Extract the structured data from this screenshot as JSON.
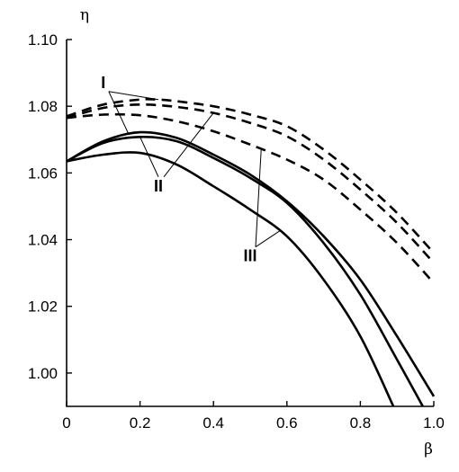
{
  "chart_data": {
    "type": "line",
    "title": "",
    "xlabel": "β",
    "ylabel": "η",
    "xlim": [
      0,
      1.0
    ],
    "ylim": [
      0.99,
      1.1
    ],
    "x_ticks": [
      0,
      0.2,
      0.4,
      0.6,
      0.8,
      1.0
    ],
    "x_tick_labels": [
      "0",
      "0.2",
      "0.4",
      "0.6",
      "0.8",
      "1.0"
    ],
    "y_ticks": [
      1.0,
      1.02,
      1.04,
      1.06,
      1.08,
      1.1
    ],
    "y_tick_labels": [
      "1.00",
      "1.02",
      "1.04",
      "1.06",
      "1.08",
      "1.10"
    ],
    "grid": false,
    "legend": "none",
    "series": [
      {
        "group": "I",
        "style": "dashed",
        "x": [
          0,
          0.1,
          0.2,
          0.25,
          0.3,
          0.4,
          0.5,
          0.6,
          0.7,
          0.8,
          0.9,
          1.0
        ],
        "y": [
          1.077,
          1.0805,
          1.082,
          1.082,
          1.0815,
          1.08,
          1.0775,
          1.074,
          1.067,
          1.058,
          1.048,
          1.036
        ]
      },
      {
        "group": "II",
        "style": "dashed",
        "x": [
          0,
          0.1,
          0.2,
          0.3,
          0.4,
          0.5,
          0.6,
          0.7,
          0.8,
          0.9,
          1.0
        ],
        "y": [
          1.0765,
          1.0795,
          1.0805,
          1.0798,
          1.078,
          1.075,
          1.071,
          1.064,
          1.055,
          1.045,
          1.033
        ]
      },
      {
        "group": "III",
        "style": "dashed",
        "x": [
          0,
          0.1,
          0.2,
          0.3,
          0.4,
          0.5,
          0.6,
          0.7,
          0.8,
          0.9,
          1.0
        ],
        "y": [
          1.0765,
          1.0775,
          1.0773,
          1.0755,
          1.0725,
          1.0685,
          1.064,
          1.058,
          1.049,
          1.039,
          1.027
        ]
      },
      {
        "group": "I",
        "style": "solid",
        "x": [
          0,
          0.1,
          0.2,
          0.3,
          0.4,
          0.5,
          0.6,
          0.7,
          0.8,
          0.9,
          1.0
        ],
        "y": [
          1.0635,
          1.0695,
          1.0722,
          1.0705,
          1.0655,
          1.0595,
          1.0515,
          1.041,
          1.028,
          1.011,
          0.993
        ]
      },
      {
        "group": "II",
        "style": "solid",
        "x": [
          0,
          0.1,
          0.2,
          0.3,
          0.4,
          0.5,
          0.6,
          0.7,
          0.8,
          0.9,
          0.97
        ],
        "y": [
          1.0635,
          1.069,
          1.0708,
          1.0695,
          1.0645,
          1.0585,
          1.051,
          1.039,
          1.0235,
          1.004,
          0.99
        ]
      },
      {
        "group": "III",
        "style": "solid",
        "x": [
          0,
          0.1,
          0.2,
          0.3,
          0.4,
          0.5,
          0.6,
          0.7,
          0.8,
          0.89
        ],
        "y": [
          1.0635,
          1.0655,
          1.066,
          1.0625,
          1.056,
          1.049,
          1.041,
          1.028,
          1.011,
          0.99
        ]
      }
    ],
    "annotations": [
      {
        "text": "I",
        "x": 0.1,
        "y": 1.0855
      },
      {
        "text": "II",
        "x": 0.25,
        "y": 1.0545
      },
      {
        "text": "III",
        "x": 0.5,
        "y": 1.0335
      }
    ]
  }
}
